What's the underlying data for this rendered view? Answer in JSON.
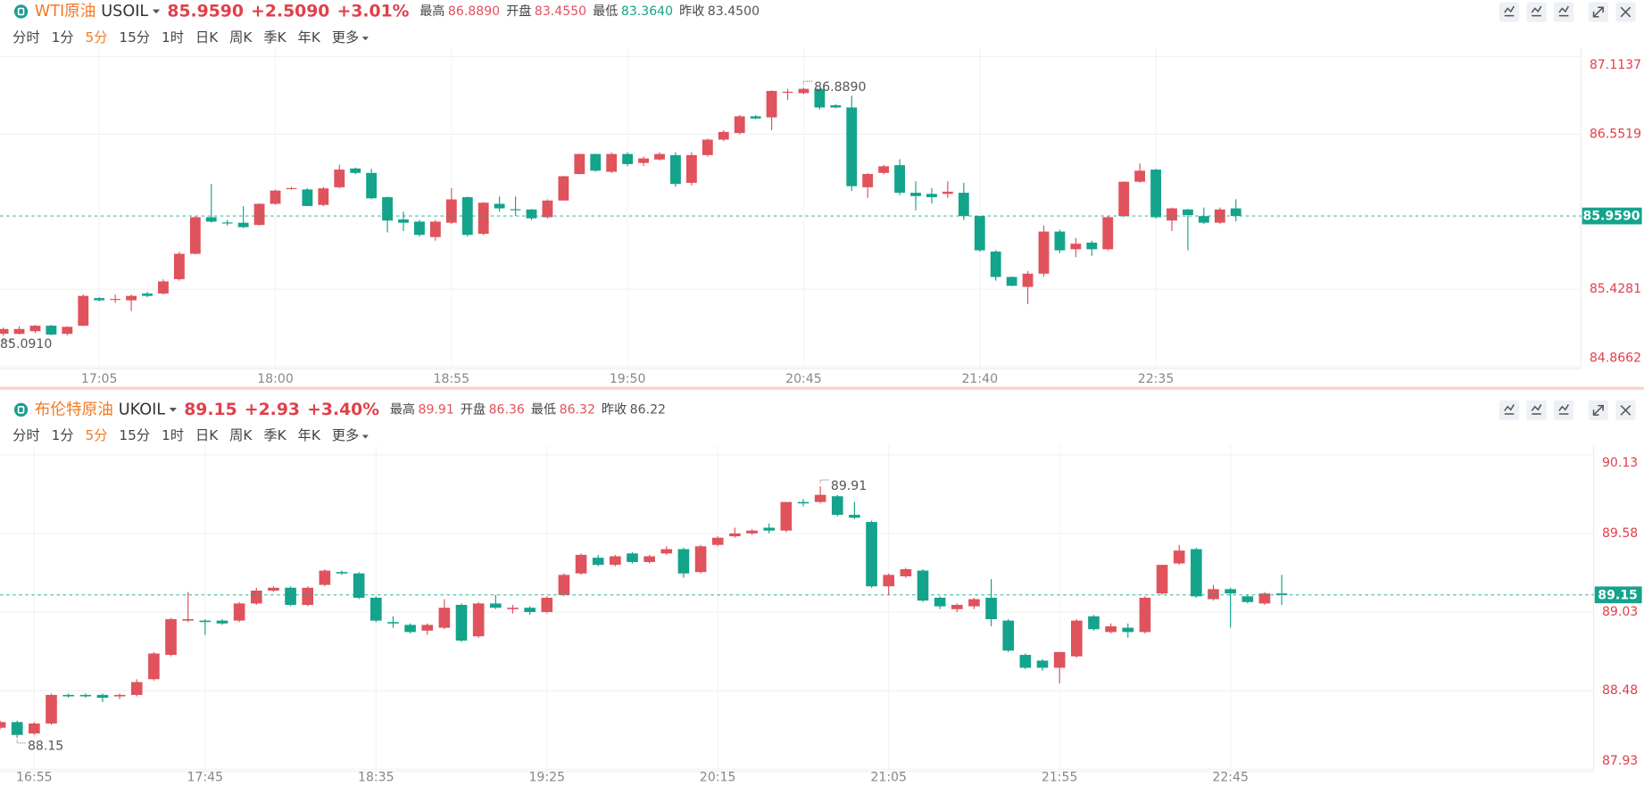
{
  "chart_data": [
    {
      "type": "candlestick",
      "symbol_name": "WTI原油",
      "symbol": "USOIL",
      "price": "85.9590",
      "change": "+2.5090",
      "change_pct": "+3.01%",
      "stats": [
        {
          "label": "最高",
          "value": "86.8890",
          "color": "#e0525c"
        },
        {
          "label": "开盘",
          "value": "83.4550",
          "color": "#e0525c"
        },
        {
          "label": "最低",
          "value": "83.3640",
          "color": "#14a38b"
        },
        {
          "label": "昨收",
          "value": "83.4500",
          "color": "#555555"
        }
      ],
      "periods": [
        {
          "label": "分时"
        },
        {
          "label": "1分"
        },
        {
          "label": "5分",
          "active": true
        },
        {
          "label": "15分"
        },
        {
          "label": "1时"
        },
        {
          "label": "日K"
        },
        {
          "label": "周K"
        },
        {
          "label": "季K"
        },
        {
          "label": "年K"
        },
        {
          "label": "更多"
        }
      ],
      "up_color": "#e0525c",
      "down_color": "#14a38b",
      "grid": true,
      "ylim": [
        84.8662,
        87.1137
      ],
      "yticks": [
        87.1137,
        86.5519,
        85.4281,
        84.8662
      ],
      "last_price": {
        "value": 85.959,
        "label": "85.9590"
      },
      "high_annotation": {
        "value": 86.889,
        "label": "86.8890"
      },
      "low_annotation": {
        "value": 85.091,
        "label": "85.0910"
      },
      "categories": [
        null,
        null,
        null,
        null,
        null,
        null,
        "17:05",
        null,
        null,
        null,
        null,
        null,
        null,
        null,
        null,
        null,
        null,
        "18:00",
        null,
        null,
        null,
        null,
        null,
        null,
        null,
        null,
        null,
        null,
        "18:55",
        null,
        null,
        null,
        null,
        null,
        null,
        null,
        null,
        null,
        null,
        "19:50",
        null,
        null,
        null,
        null,
        null,
        null,
        null,
        null,
        null,
        null,
        "20:45",
        null,
        null,
        null,
        null,
        null,
        null,
        null,
        null,
        null,
        null,
        "21:40",
        null,
        null,
        null,
        null,
        null,
        null,
        null,
        null,
        null,
        null,
        "22:35",
        null,
        null,
        null,
        null,
        null
      ],
      "open": [
        85.106,
        85.105,
        85.124,
        85.164,
        85.105,
        85.164,
        85.364,
        85.354,
        85.348,
        85.397,
        85.397,
        85.501,
        85.685,
        85.95,
        85.912,
        85.91,
        85.894,
        86.047,
        86.157,
        86.151,
        86.039,
        86.167,
        86.303,
        86.271,
        86.095,
        85.934,
        85.918,
        85.806,
        85.91,
        86.095,
        85.83,
        86.047,
        86.008,
        86.006,
        85.95,
        86.071,
        86.263,
        86.408,
        86.279,
        86.408,
        86.343,
        86.368,
        86.4,
        86.199,
        86.4,
        86.512,
        86.56,
        86.681,
        86.673,
        86.855,
        86.849,
        86.88,
        86.761,
        86.745,
        86.167,
        86.271,
        86.327,
        86.127,
        86.119,
        86.119,
        86.127,
        85.958,
        85.701,
        85.517,
        85.445,
        85.541,
        85.846,
        85.718,
        85.766,
        85.718,
        85.958,
        86.207,
        86.295,
        85.926,
        86.006,
        85.958,
        85.91,
        86.014
      ],
      "high": [
        85.15,
        85.16,
        85.17,
        85.17,
        85.16,
        85.39,
        85.37,
        85.39,
        85.39,
        85.41,
        85.5,
        85.7,
        85.96,
        86.19,
        85.93,
        86.03,
        86.05,
        86.15,
        86.17,
        86.16,
        86.17,
        86.33,
        86.31,
        86.3,
        86.1,
        85.99,
        85.93,
        85.93,
        86.16,
        86.1,
        86.06,
        86.1,
        86.1,
        86.01,
        86.08,
        86.25,
        86.41,
        86.41,
        86.42,
        86.42,
        86.39,
        86.42,
        86.42,
        86.42,
        86.52,
        86.58,
        86.69,
        86.69,
        86.87,
        86.88,
        86.889,
        86.88,
        86.77,
        86.83,
        86.27,
        86.33,
        86.37,
        86.21,
        86.16,
        86.21,
        86.2,
        85.96,
        85.71,
        85.52,
        85.56,
        85.89,
        85.86,
        85.8,
        85.78,
        85.96,
        86.21,
        86.34,
        86.3,
        86.02,
        86.01,
        86.02,
        86.02,
        86.08
      ],
      "low": [
        85.091,
        85.1,
        85.11,
        85.095,
        85.095,
        85.16,
        85.34,
        85.33,
        85.27,
        85.37,
        85.39,
        85.49,
        85.68,
        85.91,
        85.89,
        85.87,
        85.89,
        86.04,
        86.15,
        86.03,
        86.03,
        86.16,
        86.26,
        86.08,
        85.84,
        85.85,
        85.81,
        85.78,
        85.9,
        85.81,
        85.82,
        85.99,
        85.96,
        85.93,
        85.94,
        86.07,
        86.26,
        86.28,
        86.27,
        86.32,
        86.32,
        86.36,
        86.17,
        86.18,
        86.39,
        86.5,
        86.55,
        86.66,
        86.58,
        86.8,
        86.84,
        86.73,
        86.74,
        86.14,
        86.09,
        86.26,
        86.11,
        86.0,
        86.05,
        86.09,
        85.93,
        85.7,
        85.49,
        85.45,
        85.32,
        85.52,
        85.69,
        85.66,
        85.67,
        85.71,
        85.95,
        86.2,
        85.94,
        85.85,
        85.71,
        85.9,
        85.9,
        85.92
      ],
      "close": [
        85.14,
        85.14,
        85.164,
        85.1,
        85.156,
        85.38,
        85.348,
        85.358,
        85.38,
        85.38,
        85.485,
        85.685,
        85.95,
        85.918,
        85.908,
        85.878,
        86.047,
        86.143,
        86.161,
        86.031,
        86.159,
        86.295,
        86.271,
        86.087,
        85.926,
        85.91,
        85.822,
        85.918,
        86.079,
        85.822,
        86.055,
        86.014,
        86.004,
        85.942,
        86.071,
        86.247,
        86.408,
        86.287,
        86.408,
        86.335,
        86.376,
        86.408,
        86.191,
        86.4,
        86.512,
        86.568,
        86.681,
        86.665,
        86.865,
        86.859,
        86.88,
        86.745,
        86.745,
        86.175,
        86.263,
        86.319,
        86.127,
        86.103,
        86.095,
        86.135,
        85.958,
        85.71,
        85.517,
        85.453,
        85.541,
        85.846,
        85.71,
        85.758,
        85.718,
        85.95,
        86.207,
        86.287,
        85.95,
        86.014,
        85.966,
        85.91,
        86.006,
        85.959
      ]
    },
    {
      "type": "candlestick",
      "symbol_name": "布伦特原油",
      "symbol": "UKOIL",
      "price": 89.15,
      "change": "+2.93",
      "change_pct": "+3.40%",
      "stats": [
        {
          "label": "最高",
          "value": 89.91,
          "color": "#e0525c"
        },
        {
          "label": "开盘",
          "value": 86.36,
          "color": "#e0525c"
        },
        {
          "label": "最低",
          "value": 86.32,
          "color": "#e0525c"
        },
        {
          "label": "昨收",
          "value": 86.22,
          "color": "#555555"
        }
      ],
      "periods": [
        {
          "label": "分时"
        },
        {
          "label": "1分"
        },
        {
          "label": "5分",
          "active": true
        },
        {
          "label": "15分"
        },
        {
          "label": "1时"
        },
        {
          "label": "日K"
        },
        {
          "label": "周K"
        },
        {
          "label": "季K"
        },
        {
          "label": "年K"
        },
        {
          "label": "更多"
        }
      ],
      "up_color": "#e0525c",
      "down_color": "#14a38b",
      "grid": true,
      "ylim": [
        87.93,
        90.13
      ],
      "yticks": [
        90.13,
        89.58,
        89.03,
        88.48,
        87.93
      ],
      "last_price": 89.15,
      "high_annotation": 89.91,
      "low_annotation": 88.15,
      "categories": [
        null,
        null,
        "16:55",
        null,
        null,
        null,
        null,
        null,
        null,
        null,
        null,
        null,
        "17:45",
        null,
        null,
        null,
        null,
        null,
        null,
        null,
        null,
        null,
        "18:35",
        null,
        null,
        null,
        null,
        null,
        null,
        null,
        null,
        null,
        "19:25",
        null,
        null,
        null,
        null,
        null,
        null,
        null,
        null,
        null,
        "20:15",
        null,
        null,
        null,
        null,
        null,
        null,
        null,
        null,
        null,
        "21:05",
        null,
        null,
        null,
        null,
        null,
        null,
        null,
        null,
        null,
        "21:55",
        null,
        null,
        null,
        null,
        null,
        null,
        null,
        null,
        null,
        "22:45",
        null,
        null,
        null
      ],
      "open": [
        88.22,
        88.26,
        88.18,
        88.25,
        88.45,
        88.45,
        88.45,
        88.44,
        88.45,
        88.56,
        88.73,
        88.97,
        88.97,
        88.97,
        88.97,
        89.09,
        89.18,
        89.2,
        89.08,
        89.22,
        89.31,
        89.3,
        89.13,
        88.96,
        88.94,
        88.9,
        88.92,
        89.08,
        88.86,
        89.09,
        89.05,
        89.06,
        89.03,
        89.15,
        89.3,
        89.41,
        89.36,
        89.44,
        89.38,
        89.44,
        89.47,
        89.31,
        89.5,
        89.56,
        89.58,
        89.62,
        89.6,
        89.8,
        89.8,
        89.84,
        89.71,
        89.66,
        89.21,
        89.28,
        89.32,
        89.13,
        89.05,
        89.07,
        89.13,
        88.97,
        88.73,
        88.69,
        88.64,
        88.72,
        89.0,
        88.89,
        88.92,
        88.89,
        89.16,
        89.37,
        89.47,
        89.12,
        89.19,
        89.14,
        89.09,
        89.16
      ],
      "high": [
        88.27,
        88.27,
        88.26,
        88.46,
        88.46,
        88.46,
        88.46,
        88.46,
        88.56,
        88.75,
        88.99,
        89.17,
        88.98,
        88.98,
        89.1,
        89.2,
        89.21,
        89.21,
        89.21,
        89.33,
        89.32,
        89.31,
        89.14,
        89.0,
        88.95,
        88.95,
        89.12,
        89.09,
        89.1,
        89.15,
        89.08,
        89.07,
        89.14,
        89.3,
        89.44,
        89.43,
        89.43,
        89.45,
        89.43,
        89.49,
        89.48,
        89.5,
        89.56,
        89.62,
        89.61,
        89.65,
        89.8,
        89.82,
        89.91,
        89.85,
        89.8,
        89.67,
        89.3,
        89.34,
        89.33,
        89.14,
        89.09,
        89.13,
        89.26,
        88.98,
        88.74,
        88.7,
        88.75,
        88.98,
        89.01,
        88.95,
        88.95,
        89.14,
        89.36,
        89.5,
        89.48,
        89.22,
        89.2,
        89.15,
        89.17,
        89.29
      ],
      "low": [
        88.21,
        88.15,
        88.17,
        88.24,
        88.43,
        88.43,
        88.4,
        88.42,
        88.44,
        88.55,
        88.72,
        88.96,
        88.87,
        88.94,
        88.96,
        89.08,
        89.17,
        89.07,
        89.07,
        89.21,
        89.29,
        89.12,
        88.96,
        88.92,
        88.88,
        88.87,
        88.91,
        88.82,
        88.85,
        89.05,
        89.02,
        89.01,
        89.02,
        89.14,
        89.29,
        89.35,
        89.35,
        89.37,
        89.37,
        89.43,
        89.27,
        89.3,
        89.49,
        89.55,
        89.57,
        89.58,
        89.59,
        89.77,
        89.79,
        89.7,
        89.68,
        89.2,
        89.15,
        89.27,
        89.1,
        89.05,
        89.03,
        89.05,
        88.93,
        88.75,
        88.63,
        88.62,
        88.53,
        88.71,
        88.9,
        88.88,
        88.85,
        88.88,
        89.15,
        89.36,
        89.13,
        89.11,
        88.92,
        89.09,
        89.08,
        89.08
      ],
      "close": [
        88.26,
        88.17,
        88.25,
        88.45,
        88.44,
        88.44,
        88.43,
        88.45,
        88.54,
        88.74,
        88.98,
        88.98,
        88.96,
        88.95,
        89.09,
        89.18,
        89.2,
        89.08,
        89.2,
        89.32,
        89.3,
        89.13,
        88.97,
        88.95,
        88.89,
        88.94,
        89.06,
        88.83,
        89.09,
        89.06,
        89.06,
        89.03,
        89.13,
        89.29,
        89.43,
        89.36,
        89.42,
        89.38,
        89.42,
        89.47,
        89.3,
        89.49,
        89.55,
        89.58,
        89.6,
        89.6,
        89.8,
        89.79,
        89.85,
        89.71,
        89.69,
        89.21,
        89.29,
        89.33,
        89.11,
        89.07,
        89.08,
        89.12,
        88.98,
        88.76,
        88.64,
        88.64,
        88.75,
        88.97,
        88.91,
        88.93,
        88.89,
        89.13,
        89.36,
        89.46,
        89.14,
        89.19,
        89.16,
        89.1,
        89.16,
        89.15
      ]
    }
  ]
}
